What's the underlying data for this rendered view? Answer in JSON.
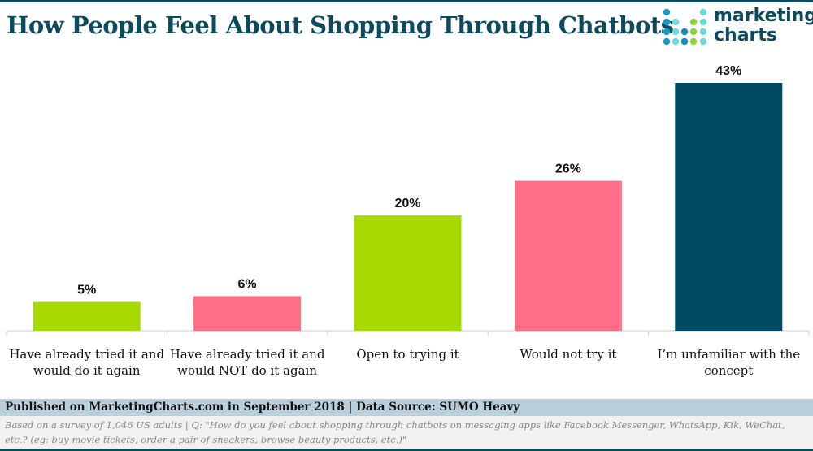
{
  "title": "How People Feel About Shopping Through Chatbots",
  "logo": {
    "line1": "marketing",
    "line2": "charts"
  },
  "chart_data": {
    "type": "bar",
    "categories": [
      "Have already tried it and|would do it again",
      "Have already tried it and|would NOT do it again",
      "Open to trying it",
      "Would not try it",
      "I’m unfamiliar with the|concept"
    ],
    "values": [
      5,
      6,
      20,
      26,
      43
    ],
    "data_labels": [
      "5%",
      "6%",
      "20%",
      "26%",
      "43%"
    ],
    "colors": [
      "#a6d900",
      "#ff6d87",
      "#a6d900",
      "#ff6d87",
      "#004a63"
    ],
    "ylim": [
      0,
      43
    ],
    "grid": false
  },
  "footer": {
    "published": "Published on MarketingCharts.com in September 2018 | Data Source: SUMO Heavy",
    "note": "Based on a survey of 1,046 US adults | Q: \"How do you feel about shopping through chatbots on messaging apps like Facebook Messenger, WhatsApp, Kik, WeChat, etc.? (eg: buy movie tickets, order a pair of sneakers, browse beauty products, etc.)\""
  }
}
